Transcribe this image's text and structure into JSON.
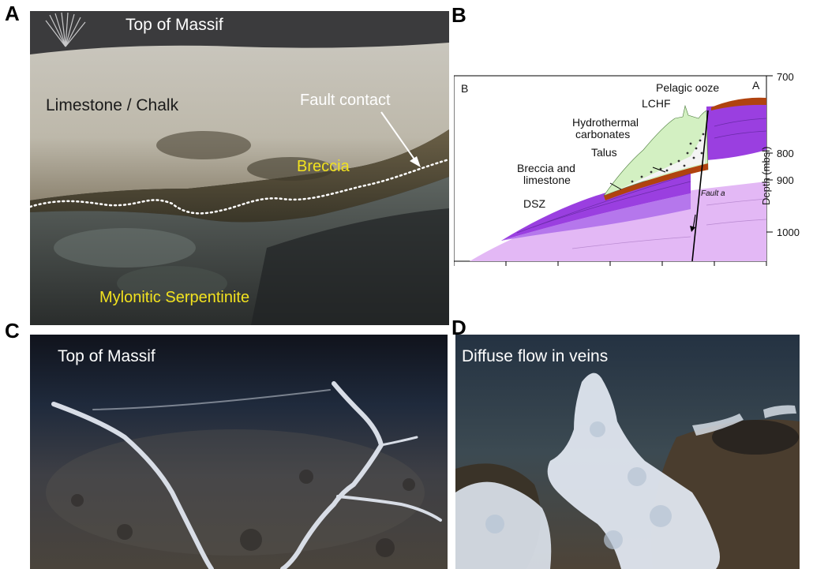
{
  "panels": {
    "a": {
      "letter": "A",
      "labels": {
        "top": "Top of Massif",
        "limestone": "Limestone / Chalk",
        "fault": "Fault contact",
        "breccia": "Breccia",
        "serpentinite": "Mylonitic Serpentinite"
      }
    },
    "b": {
      "letter": "B",
      "corner_left": "B",
      "corner_right": "A",
      "labels": {
        "pelagic": "Pelagic ooze",
        "lchf": "LCHF",
        "hydro1": "Hydrothermal",
        "hydro2": "carbonates",
        "talus": "Talus",
        "breccia1": "Breccia and",
        "breccia2": "limestone",
        "dsz": "DSZ",
        "fault": "Fault a"
      },
      "axis": {
        "label": "Depth (mbsl)",
        "ticks": [
          "700",
          "800",
          "900",
          "1000"
        ]
      }
    },
    "c": {
      "letter": "C",
      "label": "Top of Massif"
    },
    "d": {
      "letter": "D",
      "label": "Diffuse flow in veins"
    }
  },
  "colors": {
    "green": "#d3f0c2",
    "purple_dark": "#9a3fe0",
    "purple_light": "#e3b8f5",
    "brown": "#b0430f",
    "yellow_text": "#f2e21f"
  }
}
